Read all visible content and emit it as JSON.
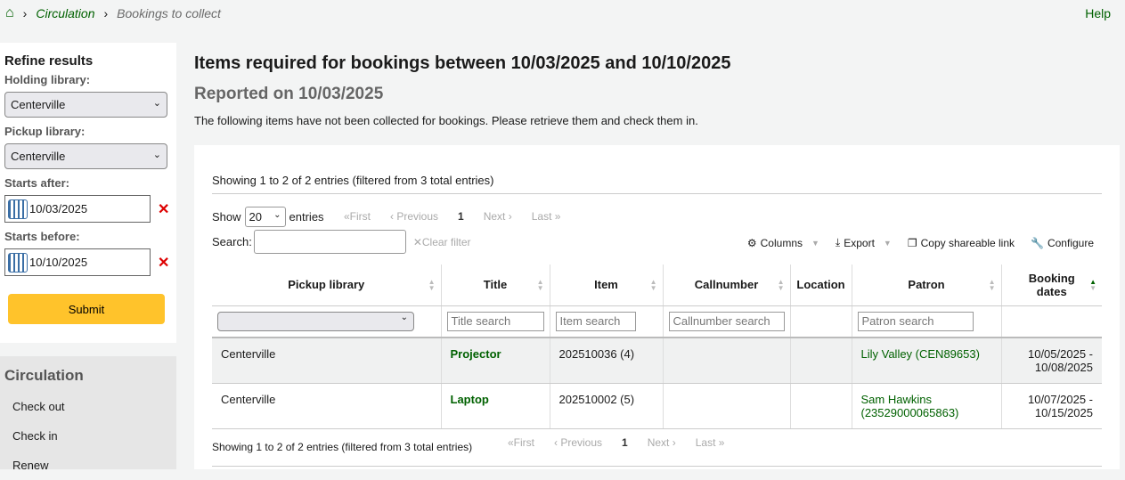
{
  "breadcrumb": {
    "home_icon": "home-icon",
    "circulation": "Circulation",
    "current": "Bookings to collect"
  },
  "help": "Help",
  "refine": {
    "title": "Refine results",
    "holding_label": "Holding library:",
    "holding_value": "Centerville",
    "pickup_label": "Pickup library:",
    "pickup_value": "Centerville",
    "after_label": "Starts after:",
    "after_value": "10/03/2025",
    "before_label": "Starts before:",
    "before_value": "10/10/2025",
    "submit": "Submit"
  },
  "circnav": {
    "title": "Circulation",
    "items": [
      "Check out",
      "Check in",
      "Renew"
    ]
  },
  "main": {
    "title": "Items required for bookings between 10/03/2025 and 10/10/2025",
    "reported": "Reported on 10/03/2025",
    "description": "The following items have not been collected for bookings. Please retrieve them and check them in."
  },
  "table": {
    "info": "Showing 1 to 2 of 2 entries (filtered from 3 total entries)",
    "show": "Show",
    "page_size": "20",
    "entries": "entries",
    "pager": {
      "first": "«First",
      "previous": "‹ Previous",
      "page": "1",
      "next": "Next ›",
      "last": "Last »"
    },
    "search_label": "Search:",
    "clear_filter": "Clear filter",
    "tools": {
      "columns": "Columns",
      "export": "Export",
      "copy": "Copy shareable link",
      "configure": "Configure"
    },
    "headers": [
      "Pickup library",
      "Title",
      "Item",
      "Callnumber",
      "Location",
      "Patron",
      "Booking dates"
    ],
    "filters": {
      "title": "Title search",
      "item": "Item search",
      "callnumber": "Callnumber search",
      "patron": "Patron search"
    },
    "rows": [
      {
        "pickup": "Centerville",
        "title": "Projector",
        "item": "202510036 (4)",
        "callnumber": "",
        "location": "",
        "patron": "Lily Valley (CEN89653)",
        "dates_start": "10/05/2025 -",
        "dates_end": "10/08/2025"
      },
      {
        "pickup": "Centerville",
        "title": "Laptop",
        "item": "202510002 (5)",
        "callnumber": "",
        "location": "",
        "patron": "Sam Hawkins (23529000065863)",
        "dates_start": "10/07/2025 -",
        "dates_end": "10/15/2025"
      }
    ]
  },
  "colors": {
    "link": "#006100",
    "submit": "#ffc32b",
    "clear": "#dd0000"
  }
}
